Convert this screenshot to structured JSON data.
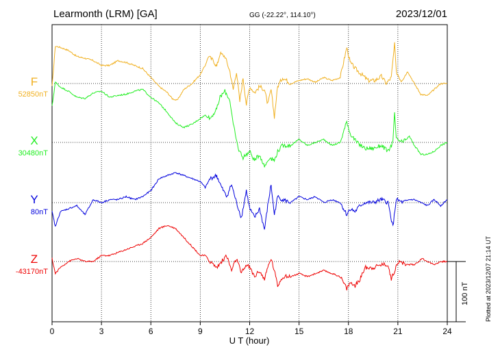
{
  "header": {
    "station": "Learmonth (LRM)  [GA]",
    "coords": "GG (-22.22°, 114.10°)",
    "date": "2023/12/01"
  },
  "footer": {
    "plotted": "Plotted at 2023/12/07 21:14 UT"
  },
  "chart_data": {
    "type": "line",
    "xlabel": "U T (hour)",
    "xlim": [
      0,
      24
    ],
    "xticks": [
      "0",
      "3",
      "6",
      "9",
      "12",
      "15",
      "18",
      "21",
      "24"
    ],
    "scale_bar_label": "100 nT",
    "scale_bar_nT": 100,
    "grid": true,
    "channels": [
      {
        "name": "F",
        "baseline": "52850nT",
        "color": "#f0b020",
        "baseline_nT": 52850,
        "offset_nT": [
          [
            0,
            -5
          ],
          [
            0.2,
            62
          ],
          [
            0.5,
            60
          ],
          [
            1,
            55
          ],
          [
            1.5,
            45
          ],
          [
            2,
            42
          ],
          [
            2.5,
            38
          ],
          [
            3,
            30
          ],
          [
            3.5,
            30
          ],
          [
            4,
            38
          ],
          [
            4.5,
            35
          ],
          [
            5,
            30
          ],
          [
            5.5,
            25
          ],
          [
            6,
            10
          ],
          [
            6.5,
            -5
          ],
          [
            7,
            -15
          ],
          [
            7.3,
            -25
          ],
          [
            7.6,
            -28
          ],
          [
            8,
            -10
          ],
          [
            8.5,
            0
          ],
          [
            9,
            15
          ],
          [
            9.3,
            30
          ],
          [
            9.5,
            45
          ],
          [
            9.8,
            38
          ],
          [
            10,
            28
          ],
          [
            10.2,
            50
          ],
          [
            10.5,
            45
          ],
          [
            10.8,
            20
          ],
          [
            11,
            -10
          ],
          [
            11.2,
            20
          ],
          [
            11.4,
            -30
          ],
          [
            11.6,
            10
          ],
          [
            11.8,
            -35
          ],
          [
            12,
            -5
          ],
          [
            12.3,
            -15
          ],
          [
            12.6,
            -5
          ],
          [
            12.9,
            -10
          ],
          [
            13.1,
            -35
          ],
          [
            13.3,
            -10
          ],
          [
            13.5,
            -55
          ],
          [
            13.7,
            -5
          ],
          [
            14,
            10
          ],
          [
            14.5,
            0
          ],
          [
            15,
            5
          ],
          [
            15.5,
            8
          ],
          [
            16,
            2
          ],
          [
            16.5,
            10
          ],
          [
            17,
            5
          ],
          [
            17.5,
            10
          ],
          [
            17.9,
            60
          ],
          [
            18.1,
            35
          ],
          [
            18.4,
            25
          ],
          [
            18.8,
            15
          ],
          [
            19.2,
            5
          ],
          [
            19.6,
            5
          ],
          [
            20,
            12
          ],
          [
            20.3,
            0
          ],
          [
            20.6,
            10
          ],
          [
            20.8,
            65
          ],
          [
            20.9,
            20
          ],
          [
            21.2,
            5
          ],
          [
            21.6,
            20
          ],
          [
            22,
            0
          ],
          [
            22.4,
            -18
          ],
          [
            22.8,
            -20
          ],
          [
            23.2,
            -10
          ],
          [
            23.6,
            0
          ],
          [
            24,
            0
          ]
        ]
      },
      {
        "name": "X",
        "baseline": "30480nT",
        "color": "#20ee20",
        "baseline_nT": 30480,
        "offset_nT": [
          [
            0,
            60
          ],
          [
            0.2,
            100
          ],
          [
            0.5,
            92
          ],
          [
            1,
            85
          ],
          [
            1.5,
            75
          ],
          [
            2,
            73
          ],
          [
            2.5,
            82
          ],
          [
            3,
            85
          ],
          [
            3.5,
            75
          ],
          [
            4,
            78
          ],
          [
            4.5,
            80
          ],
          [
            5,
            85
          ],
          [
            5.5,
            88
          ],
          [
            6,
            75
          ],
          [
            6.5,
            65
          ],
          [
            7,
            50
          ],
          [
            7.5,
            32
          ],
          [
            8,
            25
          ],
          [
            8.5,
            30
          ],
          [
            9,
            40
          ],
          [
            9.3,
            45
          ],
          [
            9.6,
            40
          ],
          [
            10,
            55
          ],
          [
            10.2,
            75
          ],
          [
            10.5,
            85
          ],
          [
            10.8,
            70
          ],
          [
            11,
            30
          ],
          [
            11.3,
            -10
          ],
          [
            11.6,
            -25
          ],
          [
            12,
            -15
          ],
          [
            12.3,
            -30
          ],
          [
            12.6,
            -20
          ],
          [
            12.9,
            -40
          ],
          [
            13.2,
            -25
          ],
          [
            13.5,
            -30
          ],
          [
            13.7,
            -15
          ],
          [
            14,
            -5
          ],
          [
            14.5,
            -5
          ],
          [
            15,
            5
          ],
          [
            15.5,
            -5
          ],
          [
            16,
            0
          ],
          [
            16.5,
            5
          ],
          [
            17,
            -5
          ],
          [
            17.5,
            0
          ],
          [
            17.9,
            35
          ],
          [
            18.1,
            15
          ],
          [
            18.5,
            0
          ],
          [
            19,
            -10
          ],
          [
            19.5,
            -10
          ],
          [
            20,
            -5
          ],
          [
            20.4,
            -15
          ],
          [
            20.7,
            0
          ],
          [
            20.8,
            50
          ],
          [
            20.9,
            5
          ],
          [
            21.3,
            0
          ],
          [
            21.7,
            10
          ],
          [
            22,
            -5
          ],
          [
            22.4,
            -20
          ],
          [
            22.8,
            -20
          ],
          [
            23.2,
            -15
          ],
          [
            23.6,
            -5
          ],
          [
            24,
            0
          ]
        ]
      },
      {
        "name": "Y",
        "baseline": "80nT",
        "color": "#0000dd",
        "baseline_nT": 80,
        "offset_nT": [
          [
            0,
            -15
          ],
          [
            0.2,
            -40
          ],
          [
            0.5,
            -15
          ],
          [
            1,
            -10
          ],
          [
            1.5,
            -5
          ],
          [
            2,
            -20
          ],
          [
            2.5,
            5
          ],
          [
            3,
            0
          ],
          [
            3.5,
            5
          ],
          [
            4,
            5
          ],
          [
            4.5,
            10
          ],
          [
            5,
            5
          ],
          [
            5.5,
            10
          ],
          [
            6,
            20
          ],
          [
            6.5,
            40
          ],
          [
            7,
            45
          ],
          [
            7.5,
            50
          ],
          [
            8,
            45
          ],
          [
            8.5,
            40
          ],
          [
            9,
            35
          ],
          [
            9.3,
            25
          ],
          [
            9.6,
            40
          ],
          [
            10,
            45
          ],
          [
            10.3,
            25
          ],
          [
            10.6,
            10
          ],
          [
            10.9,
            30
          ],
          [
            11.2,
            0
          ],
          [
            11.5,
            -25
          ],
          [
            11.8,
            20
          ],
          [
            12,
            -10
          ],
          [
            12.3,
            -25
          ],
          [
            12.6,
            -10
          ],
          [
            12.9,
            -45
          ],
          [
            13.1,
            -5
          ],
          [
            13.3,
            30
          ],
          [
            13.5,
            -20
          ],
          [
            13.7,
            10
          ],
          [
            14,
            5
          ],
          [
            14.5,
            0
          ],
          [
            15,
            10
          ],
          [
            15.5,
            5
          ],
          [
            16,
            10
          ],
          [
            16.5,
            0
          ],
          [
            17,
            5
          ],
          [
            17.5,
            0
          ],
          [
            17.9,
            -20
          ],
          [
            18.1,
            -10
          ],
          [
            18.4,
            -15
          ],
          [
            18.7,
            -5
          ],
          [
            19,
            0
          ],
          [
            19.5,
            0
          ],
          [
            20,
            5
          ],
          [
            20.4,
            0
          ],
          [
            20.7,
            -40
          ],
          [
            20.9,
            5
          ],
          [
            21.3,
            0
          ],
          [
            21.7,
            5
          ],
          [
            22,
            5
          ],
          [
            22.4,
            0
          ],
          [
            22.8,
            -5
          ],
          [
            23.2,
            5
          ],
          [
            23.6,
            -5
          ],
          [
            24,
            5
          ]
        ]
      },
      {
        "name": "Z",
        "baseline": "-43170nT",
        "color": "#ee0000",
        "baseline_nT": -43170,
        "offset_nT": [
          [
            0,
            5
          ],
          [
            0.2,
            -20
          ],
          [
            0.5,
            -10
          ],
          [
            1,
            0
          ],
          [
            1.5,
            5
          ],
          [
            2,
            0
          ],
          [
            2.5,
            0
          ],
          [
            3,
            10
          ],
          [
            3.5,
            10
          ],
          [
            4,
            15
          ],
          [
            4.5,
            20
          ],
          [
            5,
            25
          ],
          [
            5.5,
            30
          ],
          [
            6,
            40
          ],
          [
            6.5,
            55
          ],
          [
            7,
            60
          ],
          [
            7.5,
            55
          ],
          [
            8,
            40
          ],
          [
            8.5,
            25
          ],
          [
            9,
            10
          ],
          [
            9.3,
            10
          ],
          [
            9.6,
            0
          ],
          [
            10,
            -10
          ],
          [
            10.3,
            0
          ],
          [
            10.6,
            10
          ],
          [
            10.9,
            -15
          ],
          [
            11.2,
            5
          ],
          [
            11.5,
            -20
          ],
          [
            11.8,
            -5
          ],
          [
            12,
            -10
          ],
          [
            12.3,
            -25
          ],
          [
            12.6,
            -15
          ],
          [
            12.9,
            -30
          ],
          [
            13.1,
            -10
          ],
          [
            13.3,
            5
          ],
          [
            13.5,
            -15
          ],
          [
            13.7,
            -40
          ],
          [
            14,
            -25
          ],
          [
            14.5,
            -25
          ],
          [
            15,
            -20
          ],
          [
            15.5,
            -25
          ],
          [
            16,
            -20
          ],
          [
            16.5,
            -15
          ],
          [
            17,
            -20
          ],
          [
            17.5,
            -25
          ],
          [
            17.9,
            -45
          ],
          [
            18.1,
            -35
          ],
          [
            18.4,
            -40
          ],
          [
            18.7,
            -30
          ],
          [
            19,
            -10
          ],
          [
            19.5,
            -10
          ],
          [
            20,
            -5
          ],
          [
            20.4,
            -5
          ],
          [
            20.6,
            -30
          ],
          [
            20.8,
            -15
          ],
          [
            21,
            0
          ],
          [
            21.5,
            -5
          ],
          [
            22,
            -5
          ],
          [
            22.5,
            5
          ],
          [
            22.8,
            0
          ],
          [
            23.2,
            -5
          ],
          [
            23.6,
            0
          ],
          [
            24,
            0
          ]
        ]
      }
    ]
  }
}
